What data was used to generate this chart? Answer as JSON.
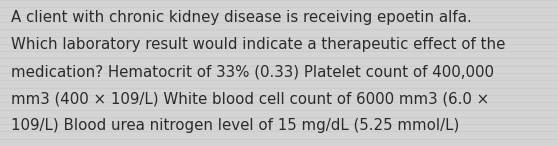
{
  "lines": [
    "A client with chronic kidney disease is receiving epoetin alfa.",
    "Which laboratory result would indicate a therapeutic effect of the",
    "medication? Hematocrit of 33% (0.33) Platelet count of 400,000",
    "mm3 (400 × 109/L) White blood cell count of 6000 mm3 (6.0 ×",
    "109/L) Blood urea nitrogen level of 15 mg/dL (5.25 mmol/L)"
  ],
  "background_color": "#d4d4d4",
  "stripe_color": "#c8c8c8",
  "text_color": "#2b2b2b",
  "font_size": 10.8,
  "font_family": "DejaVu Sans",
  "fig_width": 5.58,
  "fig_height": 1.46,
  "dpi": 100
}
